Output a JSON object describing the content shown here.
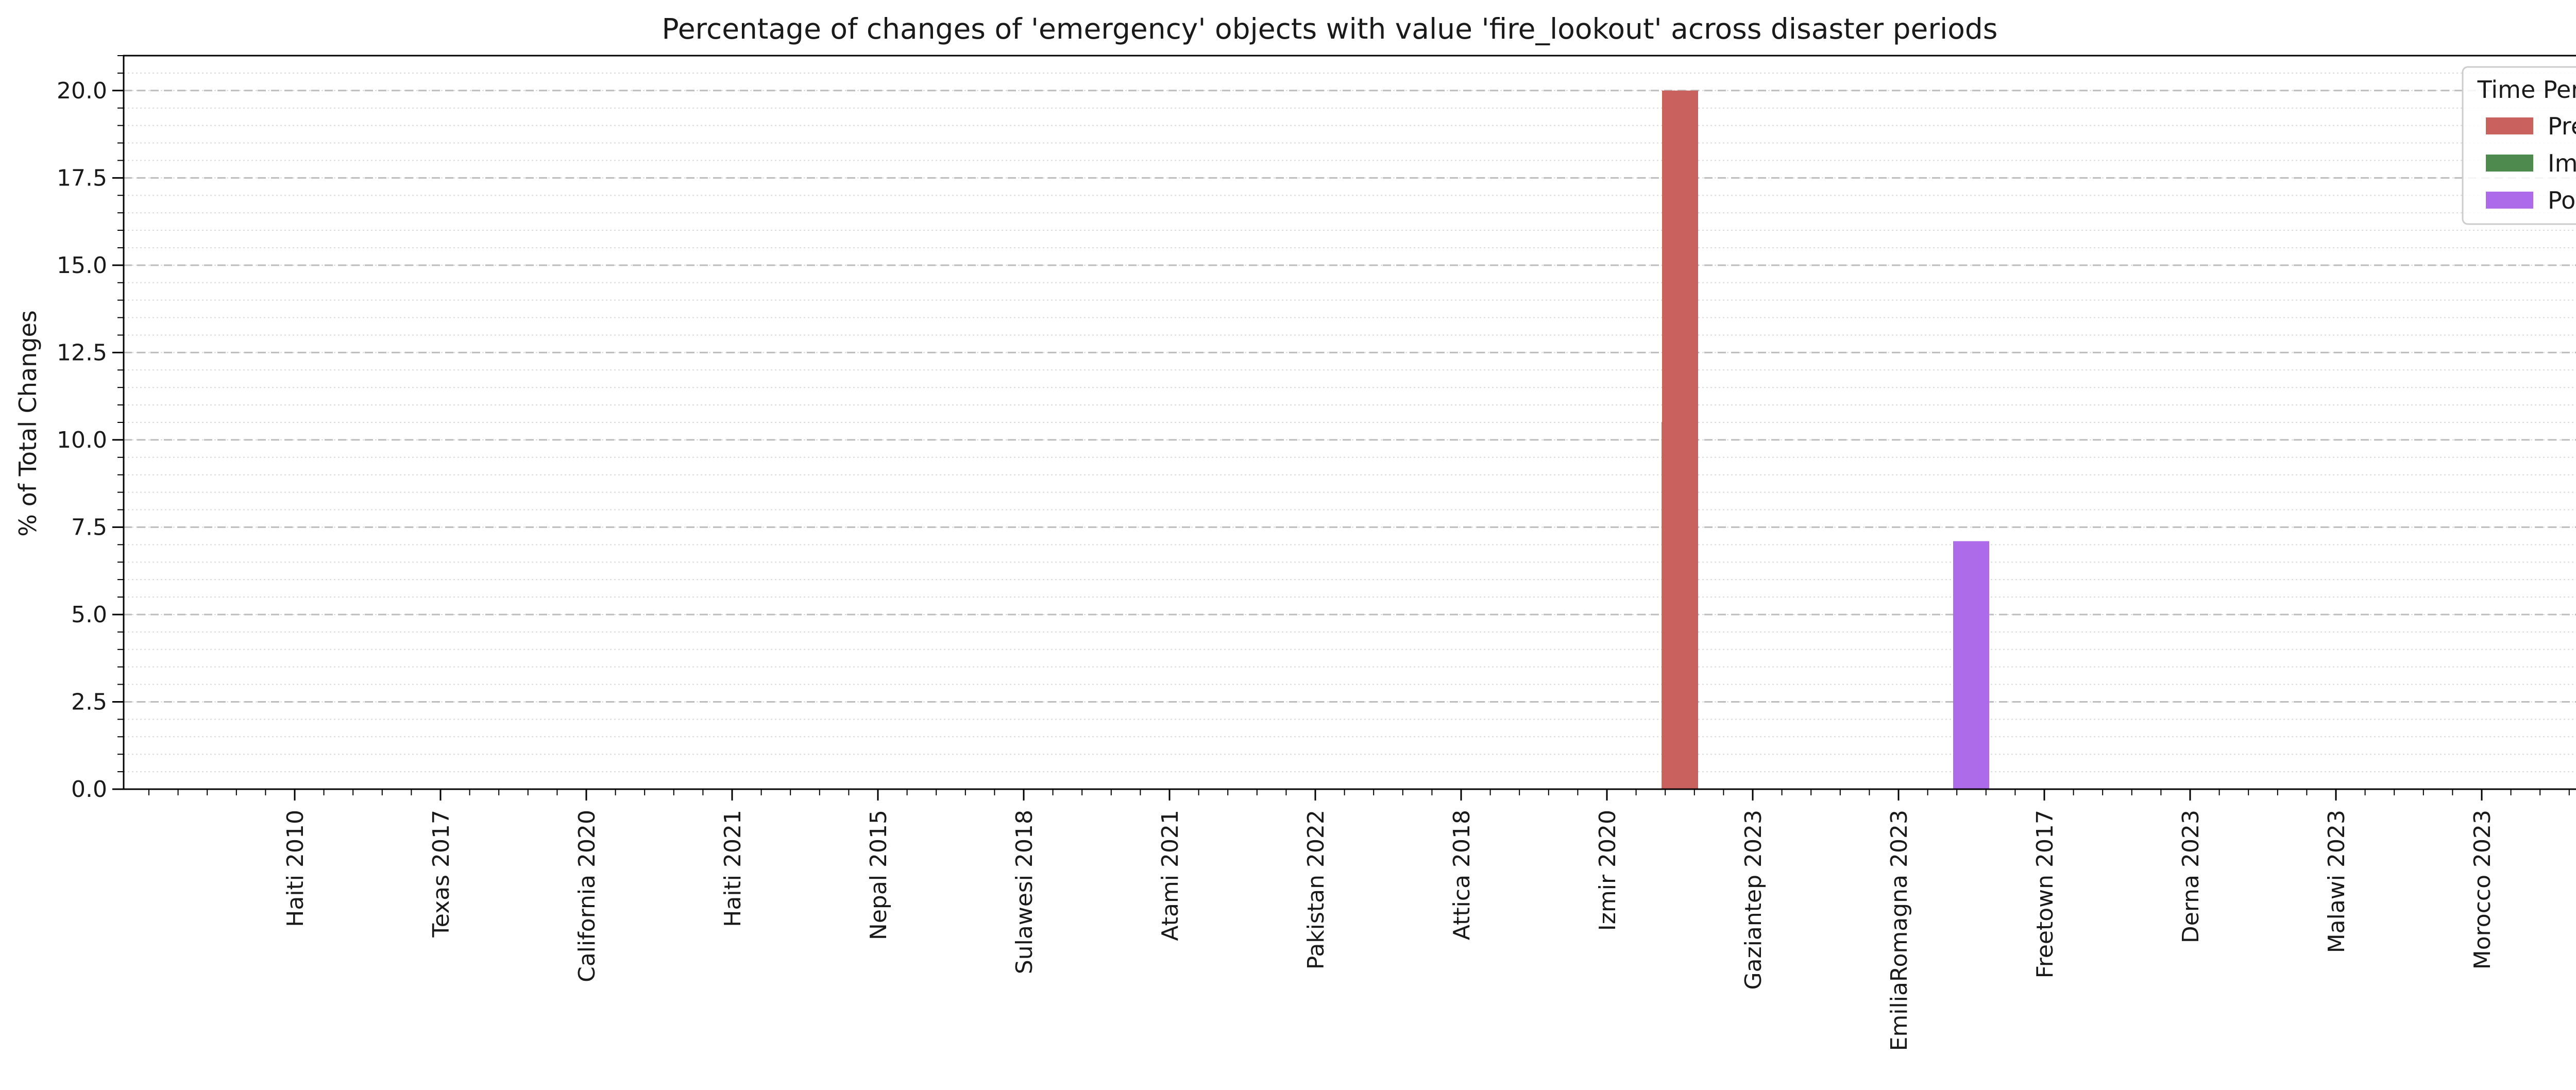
{
  "chart_data": {
    "type": "bar",
    "title": "Percentage of changes of 'emergency' objects with value 'fire_lookout' across disaster periods",
    "xlabel": "",
    "ylabel": "% of Total Changes",
    "categories": [
      "Haiti 2010",
      "Texas 2017",
      "California 2020",
      "Haiti 2021",
      "Nepal 2015",
      "Sulawesi 2018",
      "Atami 2021",
      "Pakistan 2022",
      "Attica 2018",
      "Izmir 2020",
      "Gaziantep 2023",
      "EmiliaRomagna 2023",
      "Freetown 2017",
      "Derna 2023",
      "Malawi 2023",
      "Morocco 2023"
    ],
    "series": [
      {
        "name": "Pre",
        "color": "#c9625f",
        "values": [
          0,
          0,
          0,
          0,
          0,
          0,
          0,
          0,
          0,
          0,
          20.0,
          0,
          0,
          0,
          0,
          0
        ]
      },
      {
        "name": "Imm",
        "color": "#4e8a4e",
        "values": [
          0,
          0,
          0,
          0,
          0,
          0,
          0,
          0,
          0,
          0,
          0,
          0,
          0,
          0,
          0,
          0
        ]
      },
      {
        "name": "Post",
        "color": "#ad6be9",
        "values": [
          0,
          0,
          0,
          0,
          0,
          0,
          0,
          0,
          0,
          10.5,
          0,
          7.1,
          0,
          0,
          0,
          0
        ]
      }
    ],
    "ylim": [
      0,
      21
    ],
    "yticks": [
      "0.0",
      "2.5",
      "5.0",
      "7.5",
      "10.0",
      "12.5",
      "15.0",
      "17.5",
      "20.0"
    ],
    "grid": "major dashed, minor dotted (y)",
    "legend": {
      "title": "Time Period",
      "placement": "top-right"
    }
  }
}
